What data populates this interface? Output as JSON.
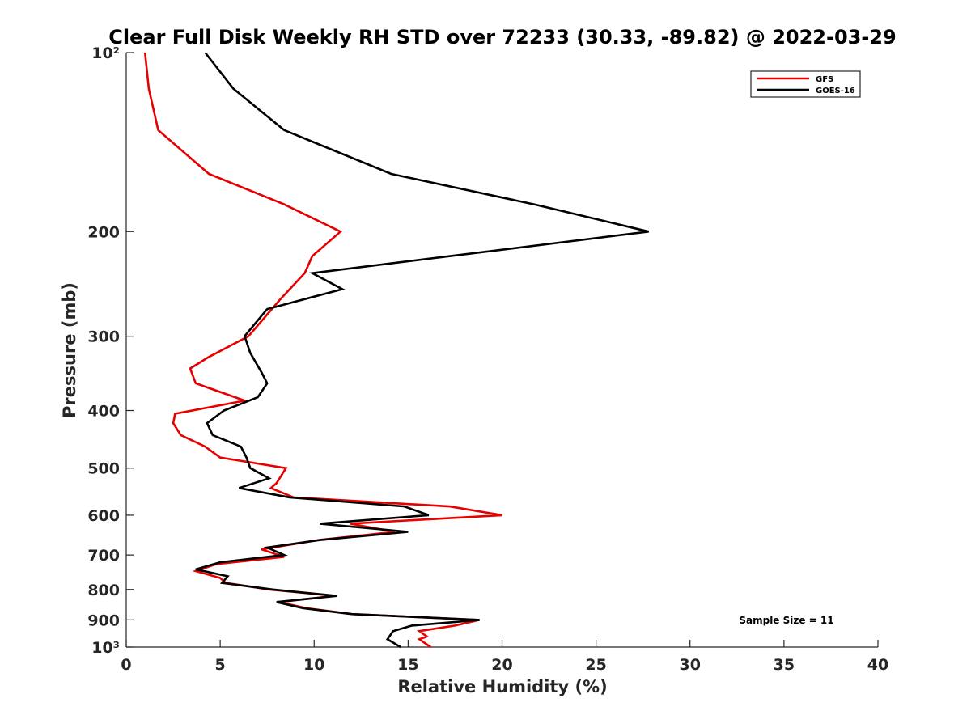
{
  "chart_data": {
    "type": "line",
    "title": "Clear Full Disk Weekly RH STD over 72233 (30.33, -89.82) @ 2022-03-29",
    "xlabel": "Relative Humidity (%)",
    "ylabel": "Pressure (mb)",
    "xlim": [
      0,
      40
    ],
    "ylim": [
      100,
      1000
    ],
    "y_scale": "log",
    "y_reversed": true,
    "x_ticks": [
      0,
      5,
      10,
      15,
      20,
      25,
      30,
      35,
      40
    ],
    "x_tick_labels": [
      "0",
      "5",
      "10",
      "15",
      "20",
      "25",
      "30",
      "35",
      "40"
    ],
    "y_ticks": [
      100,
      200,
      300,
      400,
      500,
      600,
      700,
      800,
      900,
      1000
    ],
    "y_tick_labels": [
      "10²",
      "200",
      "300",
      "400",
      "500",
      "600",
      "700",
      "800",
      "900",
      "10³"
    ],
    "grid": false,
    "legend_position": "top-right",
    "annotation": "Sample Size = 11",
    "series": [
      {
        "name": "GFS",
        "color": "#e60000",
        "points": [
          [
            1.0,
            100
          ],
          [
            1.2,
            115
          ],
          [
            1.7,
            135
          ],
          [
            4.4,
            160
          ],
          [
            8.4,
            180
          ],
          [
            11.4,
            200
          ],
          [
            9.9,
            220
          ],
          [
            9.5,
            235
          ],
          [
            8.2,
            260
          ],
          [
            6.5,
            300
          ],
          [
            4.4,
            325
          ],
          [
            3.4,
            340
          ],
          [
            3.7,
            360
          ],
          [
            6.3,
            385
          ],
          [
            2.6,
            405
          ],
          [
            2.5,
            420
          ],
          [
            2.9,
            440
          ],
          [
            4.2,
            460
          ],
          [
            5.0,
            480
          ],
          [
            8.5,
            500
          ],
          [
            8.0,
            530
          ],
          [
            7.7,
            540
          ],
          [
            8.9,
            560
          ],
          [
            17.2,
            580
          ],
          [
            20.0,
            600
          ],
          [
            11.9,
            620
          ],
          [
            14.3,
            640
          ],
          [
            10.3,
            660
          ],
          [
            7.2,
            685
          ],
          [
            8.4,
            705
          ],
          [
            4.8,
            725
          ],
          [
            3.7,
            745
          ],
          [
            5.0,
            765
          ],
          [
            5.3,
            780
          ],
          [
            7.6,
            800
          ],
          [
            11.1,
            820
          ],
          [
            8.1,
            840
          ],
          [
            9.6,
            860
          ],
          [
            12.0,
            880
          ],
          [
            18.8,
            900
          ],
          [
            17.5,
            920
          ],
          [
            15.6,
            940
          ],
          [
            16.0,
            960
          ],
          [
            15.6,
            970
          ],
          [
            16.2,
            1000
          ]
        ]
      },
      {
        "name": "GOES-16",
        "color": "#000000",
        "points": [
          [
            4.2,
            100
          ],
          [
            5.7,
            115
          ],
          [
            8.4,
            135
          ],
          [
            14.1,
            160
          ],
          [
            21.7,
            180
          ],
          [
            27.8,
            200
          ],
          [
            17.2,
            220
          ],
          [
            9.9,
            235
          ],
          [
            11.5,
            250
          ],
          [
            7.5,
            270
          ],
          [
            6.3,
            300
          ],
          [
            6.6,
            320
          ],
          [
            7.2,
            345
          ],
          [
            7.5,
            360
          ],
          [
            7.0,
            380
          ],
          [
            5.2,
            400
          ],
          [
            4.3,
            420
          ],
          [
            4.6,
            440
          ],
          [
            6.1,
            460
          ],
          [
            6.4,
            480
          ],
          [
            6.6,
            500
          ],
          [
            7.6,
            520
          ],
          [
            6.0,
            540
          ],
          [
            8.7,
            560
          ],
          [
            14.8,
            580
          ],
          [
            16.1,
            600
          ],
          [
            10.3,
            620
          ],
          [
            15.0,
            640
          ],
          [
            10.4,
            660
          ],
          [
            7.5,
            680
          ],
          [
            8.4,
            700
          ],
          [
            5.0,
            720
          ],
          [
            3.7,
            740
          ],
          [
            5.4,
            760
          ],
          [
            5.1,
            780
          ],
          [
            7.8,
            800
          ],
          [
            11.2,
            820
          ],
          [
            8.0,
            840
          ],
          [
            9.4,
            860
          ],
          [
            12.0,
            880
          ],
          [
            18.8,
            900
          ],
          [
            15.2,
            920
          ],
          [
            14.2,
            940
          ],
          [
            14.0,
            960
          ],
          [
            13.9,
            970
          ],
          [
            14.6,
            1000
          ]
        ]
      }
    ]
  }
}
